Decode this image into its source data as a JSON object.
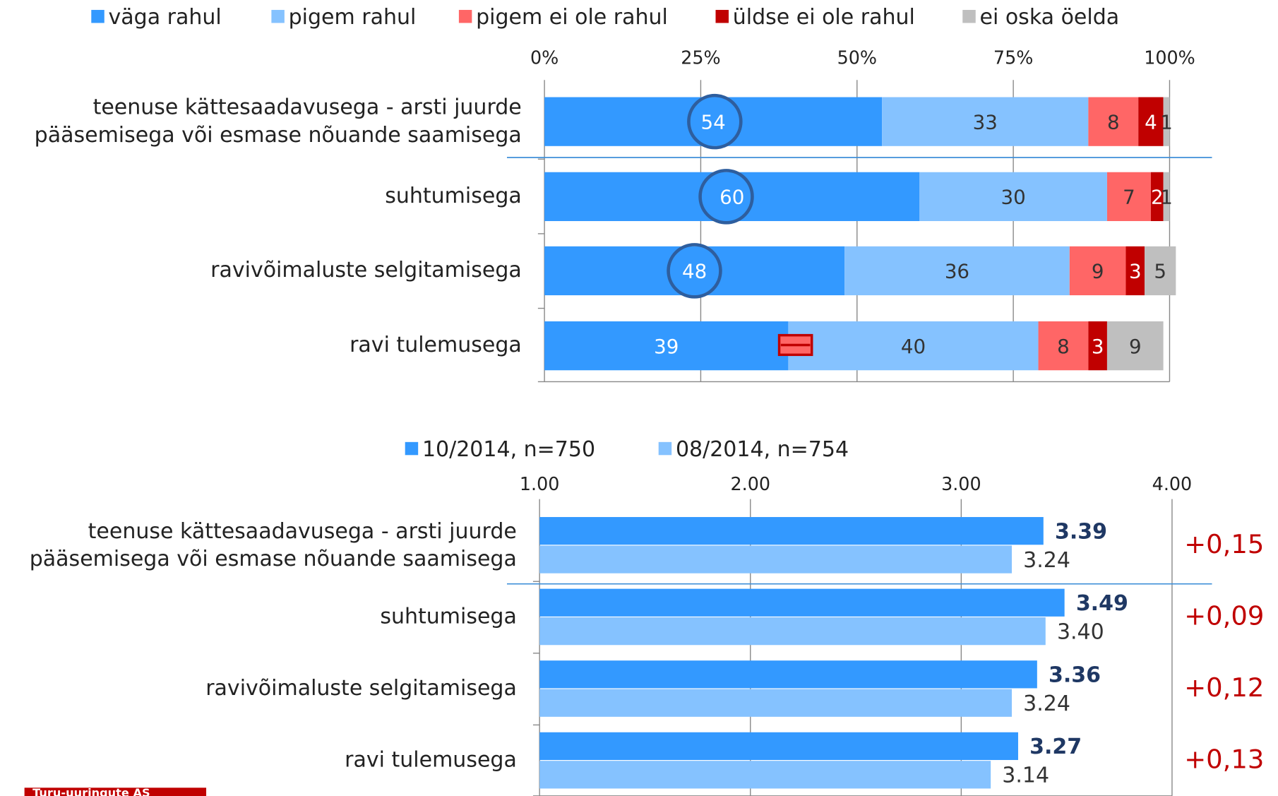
{
  "charts": [
    {
      "type": "stacked-bar",
      "categories": [
        "teenuse kättesaadavusega - arsti juurde\npääsemisega või esmase nõuande saamisega",
        "suhtumisega",
        "ravivõimaluste selgitamisega",
        "ravi tulemusega"
      ],
      "series": [
        {
          "name": "väga rahul",
          "color": "#3399ff",
          "values": [
            54,
            60,
            48,
            39
          ]
        },
        {
          "name": "pigem rahul",
          "color": "#85c2ff",
          "values": [
            33,
            30,
            36,
            40
          ]
        },
        {
          "name": "pigem ei ole rahul",
          "color": "#ff6666",
          "values": [
            8,
            7,
            9,
            8
          ]
        },
        {
          "name": "üldse ei ole rahul",
          "color": "#c00000",
          "values": [
            4,
            2,
            3,
            3
          ]
        },
        {
          "name": "ei oska öelda",
          "color": "#bfbfbf",
          "values": [
            1,
            1,
            5,
            9
          ]
        }
      ],
      "xlim": [
        0,
        100
      ],
      "xticks": [
        {
          "value": 0,
          "label": "0%"
        },
        {
          "value": 25,
          "label": "25%"
        },
        {
          "value": 50,
          "label": "50%"
        },
        {
          "value": 75,
          "label": "75%"
        },
        {
          "value": 100,
          "label": "100%"
        }
      ],
      "grid": true,
      "legend": "top"
    },
    {
      "type": "grouped-bar",
      "categories": [
        "teenuse kättesaadavusega - arsti juurde\npääsemisega või esmase nõuande saamisega",
        "suhtumisega",
        "ravivõimaluste selgitamisega",
        "ravi tulemusega"
      ],
      "series": [
        {
          "name": "10/2014, n=750",
          "color": "#3399ff",
          "values": [
            3.39,
            3.49,
            3.36,
            3.27
          ],
          "value_labels": [
            "3.39",
            "3.49",
            "3.36",
            "3.27"
          ]
        },
        {
          "name": "08/2014, n=754",
          "color": "#85c2ff",
          "values": [
            3.24,
            3.4,
            3.24,
            3.14
          ],
          "value_labels": [
            "3.24",
            "3.40",
            "3.24",
            "3.14"
          ]
        }
      ],
      "xlim": [
        1,
        4
      ],
      "xticks": [
        {
          "value": 1,
          "label": "1.00"
        },
        {
          "value": 2,
          "label": "2.00"
        },
        {
          "value": 3,
          "label": "3.00"
        },
        {
          "value": 4,
          "label": "4.00"
        }
      ],
      "grid": true,
      "legend": "top",
      "annotations": [
        "+0,15",
        "+0,09",
        "+0,12",
        "+0,13"
      ]
    }
  ],
  "logo": "Turu-uuringute AS"
}
